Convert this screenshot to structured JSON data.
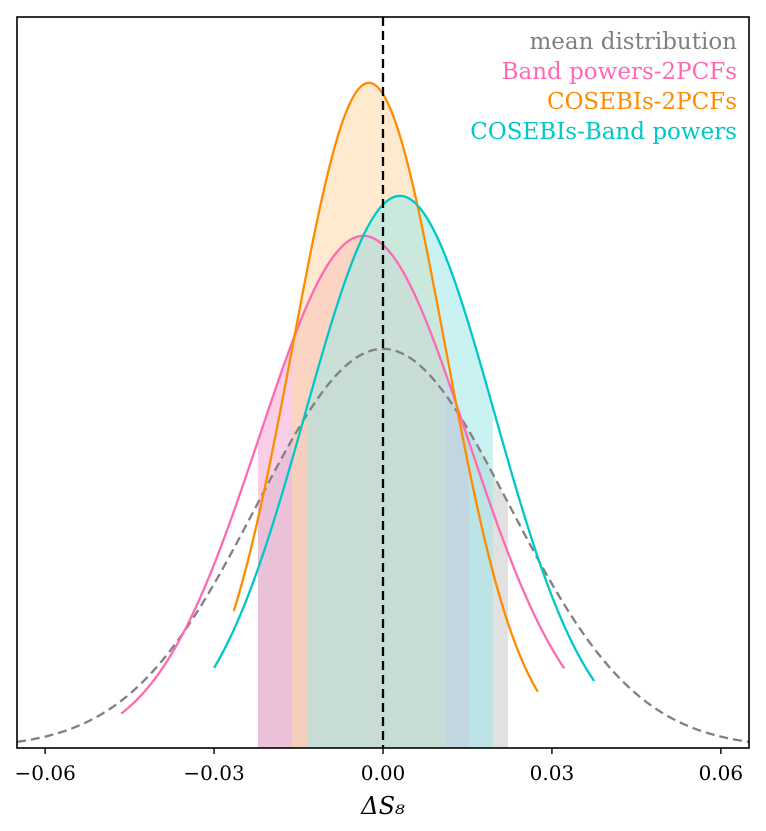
{
  "chart_data": {
    "type": "line",
    "title": "",
    "xlabel": "ΔS₈",
    "ylabel": "",
    "xlim": [
      -0.065,
      0.065
    ],
    "ylim": [
      0,
      1
    ],
    "xticks": [
      -0.06,
      -0.03,
      0.0,
      0.03,
      0.06
    ],
    "xtick_labels": [
      "−0.06",
      "−0.03",
      "0.00",
      "0.03",
      "0.06"
    ],
    "legend_position": "top-right",
    "grid": false,
    "reference_line": {
      "x": 0.0,
      "style": "dashed",
      "color": "#000000"
    },
    "series": [
      {
        "name": "mean distribution",
        "color": "#808080",
        "line_style": "dashed",
        "mean": 0.0,
        "sigma": 0.0225,
        "peak": 0.6,
        "x_range": [
          -0.065,
          0.065
        ],
        "band": [
          -0.0222,
          0.0222
        ],
        "band_color": "#c8c8c8"
      },
      {
        "name": "Band powers-2PCFs",
        "color": "#ff69b4",
        "line_style": "solid",
        "mean": -0.0035,
        "sigma": 0.0185,
        "peak": 0.77,
        "x_range": [
          -0.0465,
          0.0322
        ],
        "band": [
          -0.0222,
          0.0152
        ],
        "band_color": "#f3a8d2"
      },
      {
        "name": "COSEBIs-2PCFs",
        "color": "#ff8c00",
        "line_style": "solid",
        "mean": -0.0025,
        "sigma": 0.0135,
        "peak": 1.0,
        "x_range": [
          -0.0265,
          0.0275
        ],
        "band": [
          -0.0162,
          0.0112
        ],
        "band_color": "#ffd8a8"
      },
      {
        "name": "COSEBIs-Band powers",
        "color": "#00c8c8",
        "line_style": "solid",
        "mean": 0.003,
        "sigma": 0.0168,
        "peak": 0.83,
        "x_range": [
          -0.03,
          0.0375
        ],
        "band": [
          -0.0135,
          0.0195
        ],
        "band_color": "#9ee8e8"
      }
    ]
  }
}
